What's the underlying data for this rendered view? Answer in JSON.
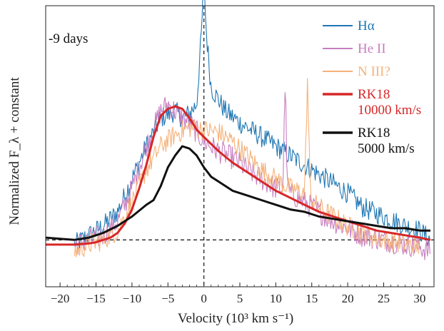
{
  "chart_data": {
    "type": "line",
    "xlabel": "Velocity (10³ km s⁻¹)",
    "ylabel": "Normalized F_λ + constant",
    "xlim": [
      -22,
      32
    ],
    "ylim": [
      -0.2,
      1.0
    ],
    "x_ticks": [
      -20,
      -15,
      -10,
      -5,
      0,
      5,
      10,
      15,
      20,
      25,
      30
    ],
    "y_ticks_shown": false,
    "annotation": "-9 days",
    "reference_lines": {
      "horizontal_y": 0,
      "vertical_x": 0,
      "style": "dashed"
    },
    "legend_placement": "top-right",
    "series": [
      {
        "name": "Hα",
        "color": "#1f77b4",
        "noisy": true,
        "noise_amp": 0.045,
        "x": [
          -18,
          -16,
          -14,
          -12,
          -10,
          -8,
          -6,
          -4,
          -3,
          -2,
          -1,
          -0.3,
          0,
          0.3,
          1,
          2,
          3,
          5,
          8,
          10,
          13,
          15,
          18,
          20,
          22,
          25,
          28,
          30,
          31.5
        ],
        "y": [
          -0.02,
          0.02,
          0.06,
          0.12,
          0.26,
          0.4,
          0.52,
          0.55,
          0.52,
          0.54,
          0.58,
          0.9,
          1.15,
          0.9,
          0.65,
          0.6,
          0.55,
          0.5,
          0.44,
          0.4,
          0.34,
          0.3,
          0.24,
          0.2,
          0.14,
          0.1,
          0.06,
          0.04,
          0.0
        ]
      },
      {
        "name": "He II",
        "color": "#c77ec0",
        "noisy": true,
        "noise_amp": 0.05,
        "x": [
          -18,
          -16,
          -14,
          -12,
          -10,
          -8,
          -6,
          -5,
          -4,
          -3,
          -2,
          -1,
          0,
          2,
          4,
          6,
          8,
          10,
          11,
          11.3,
          11.6,
          12,
          14,
          16,
          18,
          20,
          22,
          25,
          28,
          30,
          31.5
        ],
        "y": [
          -0.02,
          0.0,
          0.02,
          0.08,
          0.22,
          0.4,
          0.55,
          0.58,
          0.55,
          0.52,
          0.5,
          0.46,
          0.42,
          0.38,
          0.35,
          0.3,
          0.26,
          0.22,
          0.22,
          0.7,
          0.22,
          0.2,
          0.16,
          0.12,
          0.08,
          0.05,
          0.02,
          0.0,
          -0.02,
          -0.03,
          -0.05
        ]
      },
      {
        "name": "N III?",
        "color": "#f5b27a",
        "noisy": true,
        "noise_amp": 0.045,
        "x": [
          -18,
          -16,
          -14,
          -12,
          -10,
          -8,
          -6,
          -4,
          -2,
          0,
          2,
          4,
          6,
          8,
          10,
          12,
          14,
          14.4,
          14.8,
          15.2,
          16,
          18,
          20,
          22,
          25,
          28,
          30
        ],
        "y": [
          -0.05,
          -0.02,
          0.0,
          0.04,
          0.16,
          0.3,
          0.4,
          0.45,
          0.48,
          0.47,
          0.46,
          0.42,
          0.36,
          0.3,
          0.26,
          0.22,
          0.2,
          0.68,
          0.2,
          0.16,
          0.14,
          0.1,
          0.06,
          0.03,
          0.0,
          -0.02,
          -0.03
        ]
      },
      {
        "name": "RK18\n10000 km/s",
        "color": "#d62728",
        "noisy": false,
        "x": [
          -22,
          -20,
          -18,
          -16,
          -15,
          -14,
          -13,
          -12,
          -11,
          -10,
          -9,
          -8,
          -7,
          -6,
          -5,
          -4,
          -3,
          -2,
          -1,
          0,
          2,
          4,
          6,
          8,
          10,
          12,
          14,
          16,
          18,
          20,
          22,
          24,
          26,
          28,
          30,
          31.5
        ],
        "y": [
          -0.02,
          -0.02,
          -0.02,
          -0.015,
          -0.01,
          0.0,
          0.01,
          0.03,
          0.07,
          0.13,
          0.22,
          0.32,
          0.44,
          0.53,
          0.56,
          0.57,
          0.56,
          0.52,
          0.47,
          0.44,
          0.38,
          0.33,
          0.29,
          0.25,
          0.21,
          0.18,
          0.15,
          0.12,
          0.1,
          0.08,
          0.06,
          0.04,
          0.03,
          0.02,
          0.01,
          0.0
        ]
      },
      {
        "name": "RK18\n5000 km/s",
        "color": "#111111",
        "noisy": false,
        "x": [
          -22,
          -20,
          -18,
          -16,
          -14,
          -12,
          -10,
          -8,
          -7,
          -6,
          -5,
          -4,
          -3,
          -2,
          -1,
          0,
          1,
          2,
          4,
          6,
          8,
          10,
          12,
          14,
          16,
          18,
          20,
          22,
          24,
          26,
          28,
          30,
          31.5
        ],
        "y": [
          0.01,
          0.005,
          0.0,
          0.01,
          0.03,
          0.06,
          0.1,
          0.15,
          0.17,
          0.23,
          0.31,
          0.36,
          0.4,
          0.39,
          0.36,
          0.31,
          0.27,
          0.25,
          0.21,
          0.19,
          0.17,
          0.15,
          0.13,
          0.12,
          0.1,
          0.09,
          0.08,
          0.07,
          0.06,
          0.05,
          0.05,
          0.04,
          0.04
        ]
      }
    ]
  }
}
